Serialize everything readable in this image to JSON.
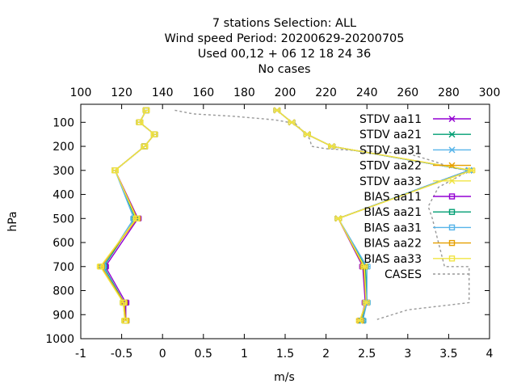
{
  "chart_data": {
    "type": "line",
    "title_lines": [
      "7 stations Selection: ALL",
      "Wind speed  Period: 20200629-20200705",
      "Used  00,12  + 06 12 18 24 36",
      "No cases"
    ],
    "xlabel": "m/s",
    "ylabel": "hPa",
    "xlim": [
      -1,
      4
    ],
    "x2lim": [
      100,
      300
    ],
    "ylim": [
      1000,
      25
    ],
    "xticks": [
      "-1",
      "-0.5",
      "0",
      "0.5",
      "1",
      "1.5",
      "2",
      "2.5",
      "3",
      "3.5",
      "4"
    ],
    "x2ticks": [
      "100",
      "120",
      "140",
      "160",
      "180",
      "200",
      "220",
      "240",
      "260",
      "280",
      "300"
    ],
    "yticks": [
      "100",
      "200",
      "300",
      "400",
      "500",
      "600",
      "700",
      "800",
      "900",
      "1000"
    ],
    "grid": false,
    "legend_position": "top-right",
    "levels": [
      50,
      100,
      150,
      200,
      300,
      500,
      700,
      850,
      925
    ],
    "series": [
      {
        "name": "STDV aa11",
        "color": "#9400d3",
        "marker": "x",
        "values": [
          1.4,
          1.58,
          1.77,
          2.07,
          3.75,
          2.15,
          2.45,
          2.48,
          2.42
        ]
      },
      {
        "name": "STDV aa21",
        "color": "#009e73",
        "marker": "x",
        "values": [
          1.4,
          1.58,
          1.77,
          2.07,
          3.75,
          2.15,
          2.48,
          2.5,
          2.44
        ]
      },
      {
        "name": "STDV aa31",
        "color": "#56b4e9",
        "marker": "x",
        "values": [
          1.4,
          1.58,
          1.77,
          2.07,
          3.75,
          2.15,
          2.5,
          2.5,
          2.45
        ]
      },
      {
        "name": "STDV aa22",
        "color": "#e69f00",
        "marker": "x",
        "values": [
          1.4,
          1.58,
          1.77,
          2.07,
          3.78,
          2.15,
          2.46,
          2.49,
          2.42
        ]
      },
      {
        "name": "STDV aa33",
        "color": "#f0e442",
        "marker": "x",
        "values": [
          1.4,
          1.58,
          1.77,
          2.07,
          3.78,
          2.15,
          2.47,
          2.49,
          2.41
        ]
      },
      {
        "name": "BIAS aa11",
        "color": "#9400d3",
        "marker": "square",
        "values": [
          -0.2,
          -0.28,
          -0.1,
          -0.22,
          -0.58,
          -0.3,
          -0.7,
          -0.45,
          -0.45
        ]
      },
      {
        "name": "BIAS aa21",
        "color": "#009e73",
        "marker": "square",
        "values": [
          -0.2,
          -0.28,
          -0.1,
          -0.22,
          -0.58,
          -0.33,
          -0.72,
          -0.47,
          -0.45
        ]
      },
      {
        "name": "BIAS aa31",
        "color": "#56b4e9",
        "marker": "square",
        "values": [
          -0.2,
          -0.28,
          -0.1,
          -0.22,
          -0.58,
          -0.35,
          -0.73,
          -0.48,
          -0.46
        ]
      },
      {
        "name": "BIAS aa22",
        "color": "#e69f00",
        "marker": "square",
        "values": [
          -0.2,
          -0.28,
          -0.1,
          -0.22,
          -0.58,
          -0.31,
          -0.75,
          -0.47,
          -0.45
        ]
      },
      {
        "name": "BIAS aa33",
        "color": "#f0e442",
        "marker": "square",
        "values": [
          -0.2,
          -0.28,
          -0.1,
          -0.22,
          -0.58,
          -0.32,
          -0.76,
          -0.48,
          -0.46
        ]
      }
    ],
    "cases": {
      "name": "CASES",
      "color": "#999999",
      "points": [
        [
          146,
          50
        ],
        [
          155,
          65
        ],
        [
          175,
          75
        ],
        [
          195,
          90
        ],
        [
          205,
          105
        ],
        [
          210,
          150
        ],
        [
          212,
          170
        ],
        [
          213,
          200
        ],
        [
          220,
          210
        ],
        [
          260,
          230
        ],
        [
          272,
          260
        ],
        [
          282,
          290
        ],
        [
          290,
          300
        ],
        [
          285,
          325
        ],
        [
          275,
          370
        ],
        [
          270,
          450
        ],
        [
          272,
          500
        ],
        [
          278,
          700
        ],
        [
          290,
          700
        ],
        [
          290,
          850
        ],
        [
          280,
          860
        ],
        [
          260,
          880
        ],
        [
          245,
          920
        ]
      ]
    }
  }
}
